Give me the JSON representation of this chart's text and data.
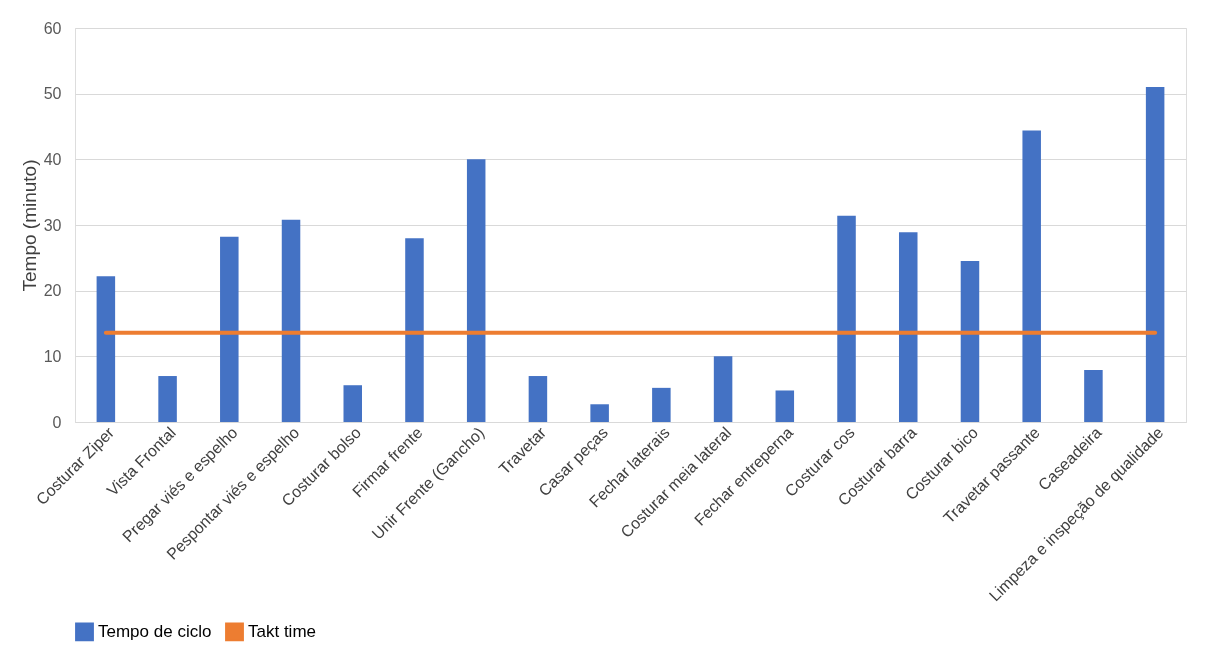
{
  "chart_data": {
    "type": "bar",
    "ylabel": "Tempo (minuto)",
    "categories": [
      "Costurar Ziper",
      "Vista Frontal",
      "Pregar viés e espelho",
      "Pespontar viés e espelho",
      "Costurar bolso",
      "Firmar frente",
      "Unir Frente (Gancho)",
      "Travetar",
      "Casar peças",
      "Fechar laterais",
      "Costurar meia lateral",
      "Fechar entreperna",
      "Costurar cos",
      "Costurar barra",
      "Costurar bico",
      "Travetar passante",
      "Caseadeira",
      "Limpeza e inspeção de qualidade"
    ],
    "series": [
      {
        "name": "Tempo de ciclo",
        "type": "bar",
        "color": "#4472c4",
        "values": [
          22.2,
          7,
          28.2,
          30.8,
          5.6,
          28,
          40,
          7,
          2.7,
          5.2,
          10,
          4.8,
          31.4,
          28.9,
          24.5,
          44.4,
          7.9,
          51
        ]
      },
      {
        "name": "Takt time",
        "type": "line",
        "color": "#ed7d31",
        "values": [
          13.6,
          13.6,
          13.6,
          13.6,
          13.6,
          13.6,
          13.6,
          13.6,
          13.6,
          13.6,
          13.6,
          13.6,
          13.6,
          13.6,
          13.6,
          13.6,
          13.6,
          13.6
        ]
      }
    ],
    "ylim": [
      0,
      60
    ],
    "yticks": [
      0,
      10,
      20,
      30,
      40,
      50,
      60
    ],
    "grid": "y",
    "legend": "bottom"
  }
}
